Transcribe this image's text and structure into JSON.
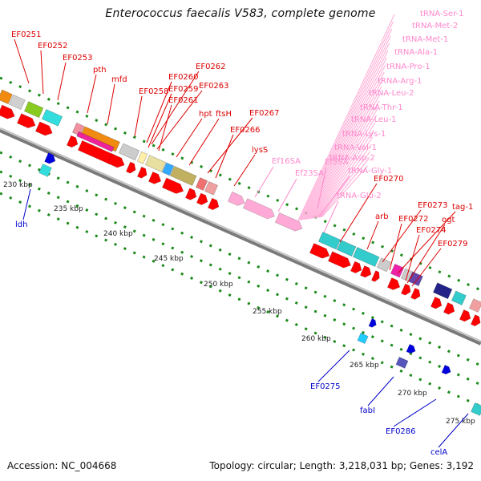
{
  "title": "Enterococcus faecalis V583, complete genome",
  "accession": "Accession: NC_004668",
  "topology": "Topology: circular; Length: 3,218,031 bp; Genes: 3,192",
  "colors": {
    "backbone": "#8f8f8f",
    "tick": "#1a8a1a",
    "cds": "#ff0000",
    "label_cds": "#dd0000",
    "label_rna": "#ff88cc",
    "label_minus": "#0000cc",
    "rna_feature": "#ffaad6"
  },
  "kbp_labels": [
    "230 kbp",
    "235 kbp",
    "240 kbp",
    "245 kbp",
    "250 kbp",
    "255 kbp",
    "260 kbp",
    "265 kbp",
    "270 kbp",
    "275 kbp"
  ],
  "cds_labels": [
    "EF0251",
    "EF0252",
    "EF0253",
    "pth",
    "mfd",
    "EF0258",
    "EF0260",
    "EF0262",
    "EF0259",
    "EF0263",
    "EF0261",
    "hpt",
    "ftsH",
    "EF0267",
    "EF0266",
    "lysS",
    "EF0270",
    "arb",
    "EF0273",
    "tag-1",
    "EF0272",
    "ogt",
    "EF0274",
    "EF0279"
  ],
  "rna_labels": [
    "tRNA-Ser-1",
    "tRNA-Met-2",
    "tRNA-Met-1",
    "tRNA-Ala-1",
    "tRNA-Pro-1",
    "tRNA-Arg-1",
    "tRNA-Leu-2",
    "tRNA-Thr-1",
    "tRNA-Leu-1",
    "tRNA-Lys-1",
    "tRNA-Val-1",
    "tRNA-Asp-2",
    "Ef5SA",
    "tRNA-Gly-1",
    "Ef16SA",
    "Ef23SA",
    "tRNA-Glu-2"
  ],
  "minus_labels": [
    "ldh",
    "EF0275",
    "fabI",
    "EF0286",
    "celA"
  ]
}
